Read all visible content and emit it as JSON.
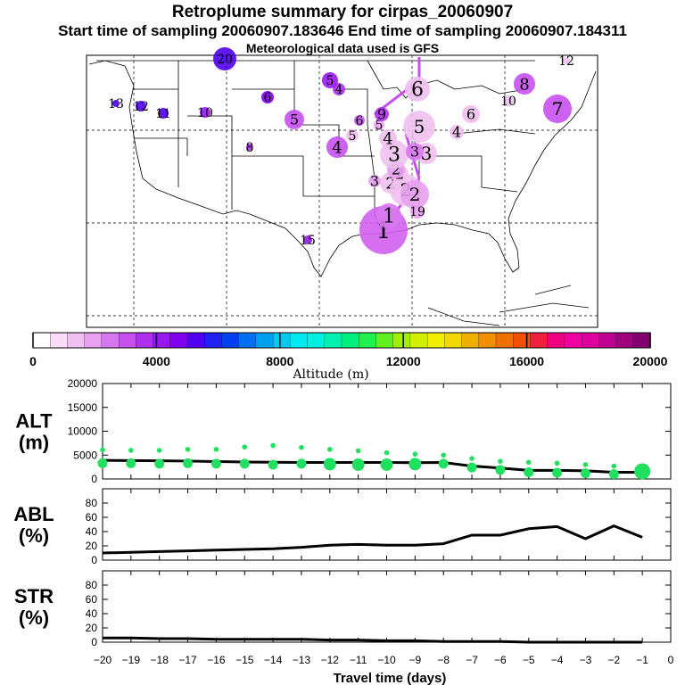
{
  "title": {
    "line1": "Retroplume summary for cirpas_20060907",
    "line2": "Start time of sampling 20060907.183646     End time of sampling 20060907.184311",
    "line3": "Meteorological data used is GFS"
  },
  "colorbar": {
    "title": "Altitude (m)",
    "ticks": [
      "0",
      "4000",
      "8000",
      "12000",
      "16000",
      "20000"
    ],
    "tick_values": [
      0,
      4000,
      8000,
      12000,
      16000,
      20000
    ],
    "colors": [
      "#ffffff",
      "#f8dcf8",
      "#f0c0f0",
      "#e8a0f0",
      "#d878f0",
      "#c850f0",
      "#b030f0",
      "#9818f0",
      "#8000f0",
      "#5000f0",
      "#2020f0",
      "#0040f0",
      "#0070f0",
      "#00a0f0",
      "#00c8f0",
      "#00e8f0",
      "#00f0e0",
      "#00f0b0",
      "#00f080",
      "#20f050",
      "#60f020",
      "#a0f000",
      "#d0f000",
      "#f0f000",
      "#f0d800",
      "#f0b000",
      "#f09000",
      "#f07000",
      "#f05000",
      "#f02040",
      "#f00080",
      "#f000a0",
      "#e000a0",
      "#c00090",
      "#a00080",
      "#800070"
    ]
  },
  "map": {
    "numbered_markers": [
      {
        "label": "1",
        "value": 1,
        "color": "#d060f0"
      },
      {
        "label": "1",
        "value": 1,
        "color": "#d878f0"
      },
      {
        "label": "2",
        "value": 2,
        "color": "#f0c0f0"
      },
      {
        "label": "2",
        "value": 2,
        "color": "#f0c0f0"
      },
      {
        "label": "2",
        "value": 2,
        "color": "#e8a0f0"
      },
      {
        "label": "2",
        "value": 2,
        "color": "#f0c0f0"
      },
      {
        "label": "2",
        "value": 2,
        "color": "#e8a0f0"
      },
      {
        "label": "3",
        "value": 3,
        "color": "#f0c0f0"
      },
      {
        "label": "3",
        "value": 3,
        "color": "#f0c0f0"
      },
      {
        "label": "3",
        "value": 3,
        "color": "#e8a0f0"
      },
      {
        "label": "3",
        "value": 3,
        "color": "#d878f0"
      },
      {
        "label": "4",
        "value": 4,
        "color": "#f0c0f0"
      },
      {
        "label": "4",
        "value": 4,
        "color": "#f0c0f0"
      },
      {
        "label": "4",
        "value": 4,
        "color": "#c850f0"
      },
      {
        "label": "4",
        "value": 4,
        "color": "#b030f0"
      },
      {
        "label": "5",
        "value": 5,
        "color": "#f0c0f0"
      },
      {
        "label": "5",
        "value": 5,
        "color": "#f0c0f0"
      },
      {
        "label": "5",
        "value": 5,
        "color": "#c850f0"
      },
      {
        "label": "5",
        "value": 5,
        "color": "#9818f0"
      },
      {
        "label": "5",
        "value": 5,
        "color": "#e8a0f0"
      },
      {
        "label": "6",
        "value": 6,
        "color": "#f0c0f0"
      },
      {
        "label": "6",
        "value": 6,
        "color": "#f0c0f0"
      },
      {
        "label": "6",
        "value": 6,
        "color": "#c850f0"
      },
      {
        "label": "6",
        "value": 6,
        "color": "#8000f0"
      },
      {
        "label": "7",
        "value": 7,
        "color": "#c850f0"
      },
      {
        "label": "8",
        "value": 8,
        "color": "#c850f0"
      },
      {
        "label": "8",
        "value": 8,
        "color": "#b030f0"
      },
      {
        "label": "9",
        "value": 9,
        "color": "#b030f0"
      },
      {
        "label": "10",
        "value": 10,
        "color": "#f0c0f0"
      },
      {
        "label": "10",
        "value": 10,
        "color": "#9818f0"
      },
      {
        "label": "11",
        "value": 11,
        "color": "#5000f0"
      },
      {
        "label": "12",
        "value": 12,
        "color": "#5000f0"
      },
      {
        "label": "12",
        "value": 12,
        "color": "#f0c0f0"
      },
      {
        "label": "13",
        "value": 13,
        "color": "#5000f0"
      },
      {
        "label": "15",
        "value": 15,
        "color": "#9818f0"
      },
      {
        "label": "19",
        "value": 19,
        "color": "#e8a0f0"
      },
      {
        "label": "20",
        "value": 20,
        "color": "#5000f0"
      }
    ]
  },
  "chart_data": [
    {
      "type": "scatter",
      "panel": "ALT",
      "label_line1": "ALT",
      "label_line2": "(m)",
      "xlim": [
        -20,
        0
      ],
      "ylim": [
        0,
        20000
      ],
      "y_ticks": [
        "0",
        "5000",
        "10000",
        "15000",
        "20000"
      ],
      "y_tick_values": [
        0,
        5000,
        10000,
        15000,
        20000
      ],
      "series": [
        {
          "name": "mean altitude",
          "kind": "line",
          "x": [
            -20,
            -19,
            -18,
            -17,
            -16,
            -15,
            -14,
            -13,
            -12,
            -11,
            -10,
            -9,
            -8,
            -7,
            -6,
            -5,
            -4,
            -3,
            -2,
            -1
          ],
          "values": [
            3900,
            3850,
            3800,
            3750,
            3650,
            3550,
            3500,
            3450,
            3450,
            3450,
            3450,
            3400,
            3450,
            2700,
            2300,
            1800,
            1800,
            1700,
            1400,
            1400
          ]
        },
        {
          "name": "upper spread",
          "kind": "points",
          "color": "#20e060",
          "x": [
            -20,
            -19,
            -18,
            -17,
            -16,
            -15,
            -14,
            -13,
            -12,
            -11,
            -10,
            -9,
            -8,
            -7,
            -6,
            -5,
            -4,
            -3,
            -2,
            -1
          ],
          "values": [
            6100,
            6000,
            6000,
            6200,
            6200,
            6700,
            7000,
            6600,
            6200,
            5900,
            5500,
            5200,
            5000,
            4300,
            3700,
            3500,
            3300,
            3000,
            2700,
            2200
          ]
        },
        {
          "name": "mean points",
          "kind": "points",
          "color": "#20e060",
          "x": [
            -20,
            -19,
            -18,
            -17,
            -16,
            -15,
            -14,
            -13,
            -12,
            -11,
            -10,
            -9,
            -8,
            -7,
            -6,
            -5,
            -4,
            -3,
            -2,
            -1
          ],
          "values": [
            3300,
            3300,
            3200,
            3300,
            3200,
            3200,
            3000,
            3200,
            3100,
            3000,
            3000,
            3100,
            3200,
            2400,
            1900,
            1400,
            1300,
            1200,
            1000,
            1600
          ]
        }
      ]
    },
    {
      "type": "line",
      "panel": "ABL",
      "label_line1": "ABL",
      "label_line2": "(%)",
      "xlim": [
        -20,
        0
      ],
      "ylim": [
        0,
        100
      ],
      "y_ticks": [
        "0",
        "20",
        "40",
        "60",
        "80"
      ],
      "y_tick_values": [
        0,
        20,
        40,
        60,
        80
      ],
      "series": [
        {
          "name": "ABL fraction",
          "x": [
            -20,
            -19,
            -18,
            -17,
            -16,
            -15,
            -14,
            -13,
            -12,
            -11,
            -10,
            -9,
            -8,
            -7,
            -6,
            -5,
            -4,
            -3,
            -2,
            -1
          ],
          "values": [
            10,
            11,
            12,
            13,
            14,
            15,
            16,
            18,
            21,
            22,
            21,
            21,
            23,
            35,
            35,
            44,
            47,
            30,
            48,
            32
          ]
        }
      ]
    },
    {
      "type": "line",
      "panel": "STR",
      "label_line1": "STR",
      "label_line2": "(%)",
      "xlim": [
        -20,
        0
      ],
      "ylim": [
        0,
        100
      ],
      "y_ticks": [
        "0",
        "20",
        "40",
        "60",
        "80"
      ],
      "y_tick_values": [
        0,
        20,
        40,
        60,
        80
      ],
      "series": [
        {
          "name": "STR fraction",
          "x": [
            -20,
            -19,
            -18,
            -17,
            -16,
            -15,
            -14,
            -13,
            -12,
            -11,
            -10,
            -9,
            -8,
            -7,
            -6,
            -5,
            -4,
            -3,
            -2,
            -1
          ],
          "values": [
            6,
            6,
            5,
            5,
            4,
            4,
            4,
            4,
            3,
            3,
            2,
            2,
            1,
            1,
            1,
            0,
            0,
            0,
            0,
            0
          ]
        }
      ]
    }
  ],
  "x_axis": {
    "label": "Travel time (days)",
    "ticks": [
      "−20",
      "−19",
      "−18",
      "−17",
      "−16",
      "−15",
      "−14",
      "−13",
      "−12",
      "−11",
      "−10",
      "−9",
      "−8",
      "−7",
      "−6",
      "−5",
      "−4",
      "−3",
      "−2",
      "−1",
      "0"
    ],
    "tick_values": [
      -20,
      -19,
      -18,
      -17,
      -16,
      -15,
      -14,
      -13,
      -12,
      -11,
      -10,
      -9,
      -8,
      -7,
      -6,
      -5,
      -4,
      -3,
      -2,
      -1,
      0
    ]
  }
}
